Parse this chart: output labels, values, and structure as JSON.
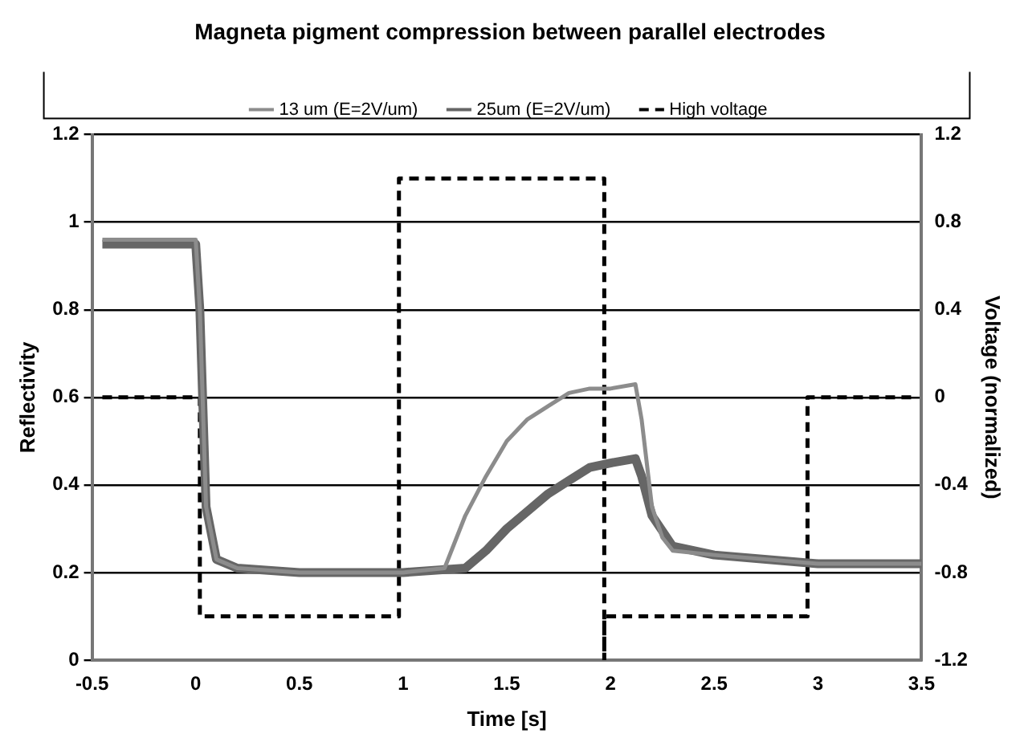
{
  "chart_data": {
    "type": "line",
    "title": "Magneta pigment compression between parallel electrodes",
    "xlabel": "Time [s]",
    "ylabel": "Reflectivity",
    "y2label": "Voltage (normalized)",
    "xlim": [
      -0.5,
      3.5
    ],
    "xticks": [
      -0.5,
      0,
      0.5,
      1,
      1.5,
      2,
      2.5,
      3,
      3.5
    ],
    "ylim": [
      0,
      1.2
    ],
    "yticks": [
      0,
      0.2,
      0.4,
      0.6,
      0.8,
      1,
      1.2
    ],
    "y2lim": [
      -1.2,
      1.2
    ],
    "y2ticks": [
      -1.2,
      -0.8,
      -0.4,
      0,
      0.4,
      0.8,
      1.2
    ],
    "grid": "y",
    "legend": "top",
    "marker": "none",
    "series": [
      {
        "name": "13 um (E=2V/um)",
        "color": "#8c8c8c",
        "line_style": "solid",
        "x": [
          -0.45,
          0,
          0.02,
          0.05,
          0.1,
          0.2,
          0.5,
          1,
          1.2,
          1.3,
          1.4,
          1.5,
          1.6,
          1.7,
          1.8,
          1.9,
          2,
          2.12,
          2.15,
          2.2,
          2.25,
          2.3,
          2.5,
          3,
          3.5
        ],
        "values": [
          0.96,
          0.96,
          0.8,
          0.35,
          0.23,
          0.21,
          0.2,
          0.2,
          0.21,
          0.33,
          0.42,
          0.5,
          0.55,
          0.58,
          0.61,
          0.62,
          0.62,
          0.63,
          0.55,
          0.35,
          0.28,
          0.25,
          0.24,
          0.22,
          0.22
        ]
      },
      {
        "name": "25um (E=2V/um)",
        "color": "#666666",
        "line_style": "solid",
        "x": [
          -0.45,
          0,
          0.02,
          0.05,
          0.1,
          0.2,
          0.5,
          1,
          1.3,
          1.4,
          1.5,
          1.6,
          1.7,
          1.8,
          1.9,
          2,
          2.12,
          2.15,
          2.2,
          2.3,
          2.5,
          3,
          3.5
        ],
        "values": [
          0.95,
          0.95,
          0.8,
          0.35,
          0.23,
          0.21,
          0.2,
          0.2,
          0.21,
          0.25,
          0.3,
          0.34,
          0.38,
          0.41,
          0.44,
          0.45,
          0.46,
          0.42,
          0.33,
          0.26,
          0.24,
          0.22,
          0.22
        ]
      },
      {
        "name": "High voltage",
        "color": "#000000",
        "line_style": "dashed",
        "axis": "y2",
        "x": [
          -0.45,
          0.02,
          0.02,
          0.98,
          0.98,
          1.97,
          1.97,
          1.97,
          2.95,
          2.95,
          3.45
        ],
        "values": [
          0,
          0,
          -1,
          -1,
          1,
          1,
          -1.2,
          -1,
          -1,
          0,
          0
        ]
      }
    ]
  }
}
